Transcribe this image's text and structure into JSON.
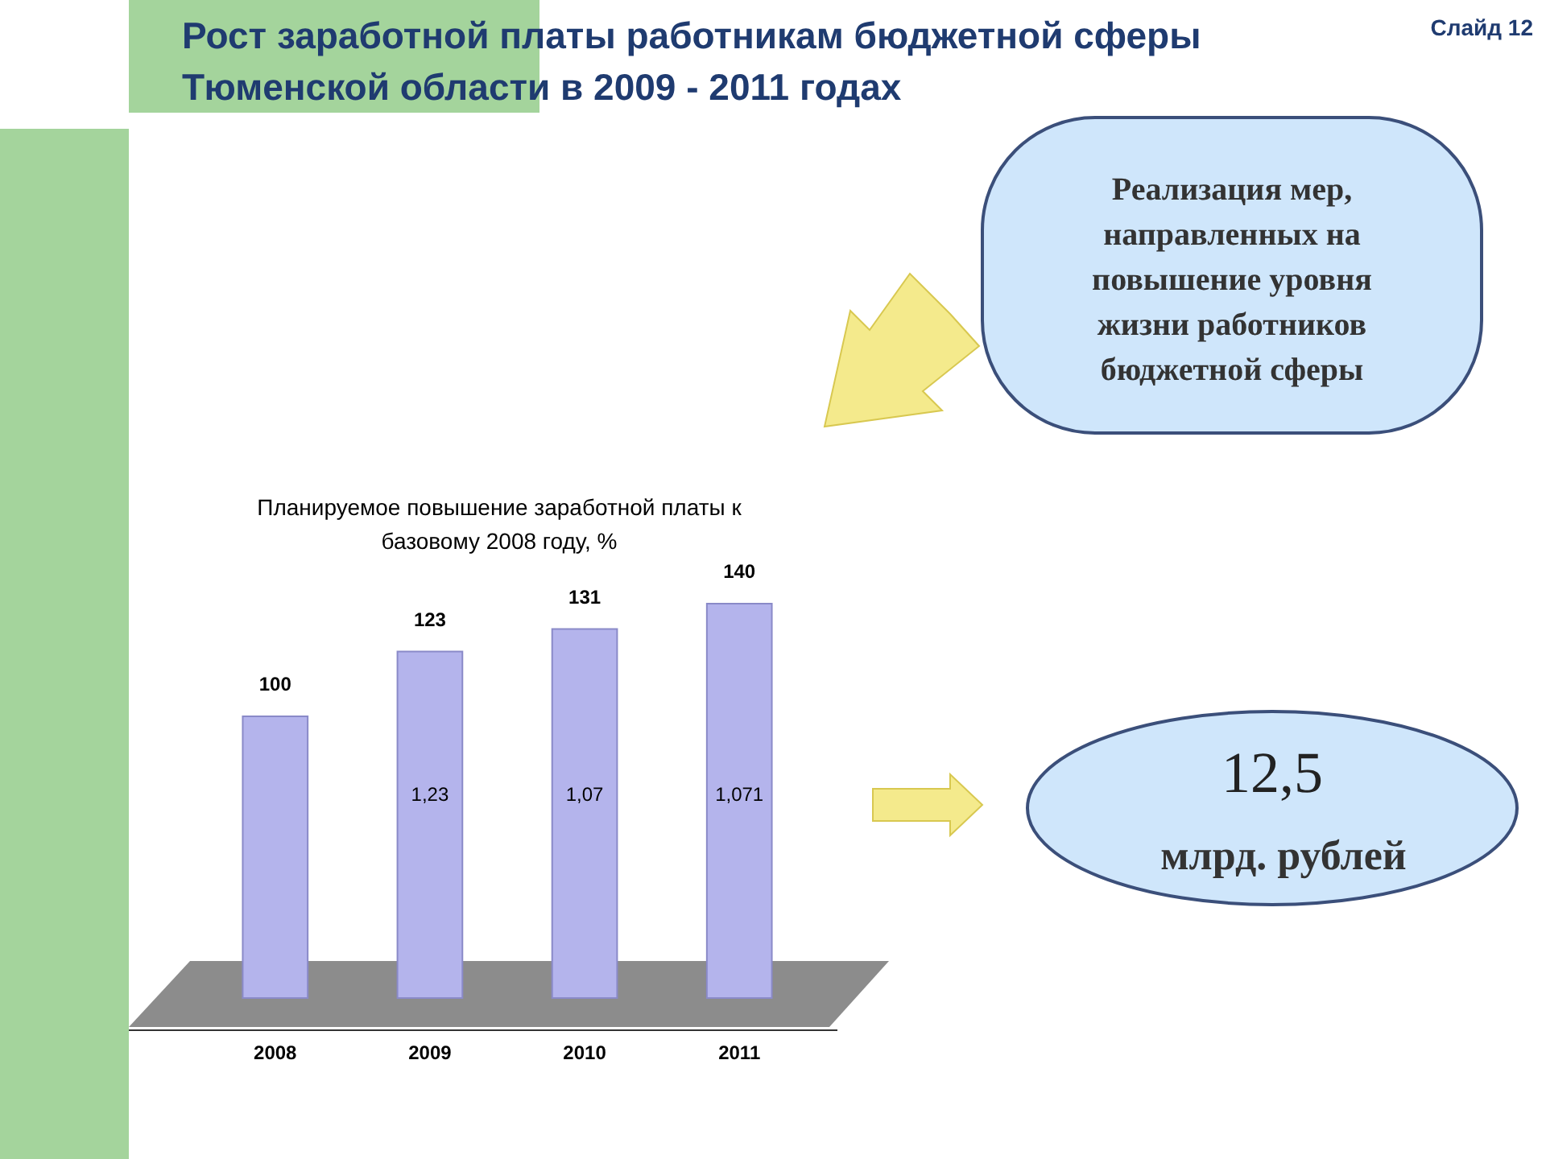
{
  "chart_data": {
    "type": "bar",
    "title": "Рост заработной платы работникам бюджетной сферы Тюменской области в 2009 - 2011 годах",
    "subtitle": "Планируемое повышение заработной платы к базовому 2008 году, %",
    "categories": [
      "2008",
      "2009",
      "2010",
      "2011"
    ],
    "values": [
      100,
      123,
      131,
      140
    ],
    "color": "#b4b4ec",
    "data_labels": true,
    "annotations": [
      "Слайд 12",
      "Реализация мер, направленных на повышение уровня жизни работников бюджетной сферы",
      "12,5",
      "млрд. рублей",
      "1,23",
      "1,07",
      "1,071"
    ]
  }
}
